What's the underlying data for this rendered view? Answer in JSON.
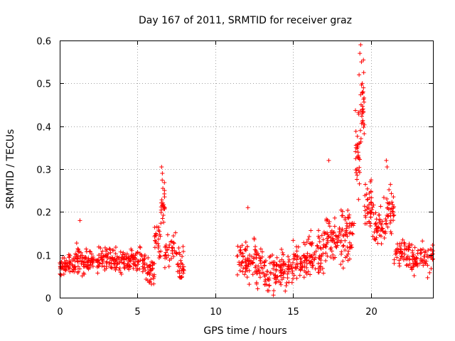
{
  "chart_data": {
    "type": "scatter",
    "title": "Day 167 of 2011, SRMTID for receiver graz",
    "xlabel": "GPS time / hours",
    "ylabel": "SRMTID / TECUs",
    "xlim": [
      0,
      24
    ],
    "ylim": [
      0,
      0.6
    ],
    "xticks": [
      0,
      5,
      10,
      15,
      20
    ],
    "xtick_labels": [
      "0",
      "5",
      "10",
      "15",
      "20"
    ],
    "yticks": [
      0,
      0.1,
      0.2,
      0.3,
      0.4,
      0.5,
      0.6
    ],
    "ytick_labels": [
      "0",
      "0.1",
      "0.2",
      "0.3",
      "0.4",
      "0.5",
      "0.6"
    ],
    "grid": true,
    "marker": "+",
    "color": "#ff0000",
    "series": [
      {
        "name": "SRMTID",
        "segments": [
          {
            "x_range": [
              0.0,
              1.0
            ],
            "center": 0.075,
            "spread": 0.035,
            "count": 60
          },
          {
            "x_range": [
              1.0,
              1.5
            ],
            "center": 0.09,
            "spread": 0.05,
            "count": 30
          },
          {
            "x_range": [
              1.5,
              2.5
            ],
            "center": 0.085,
            "spread": 0.04,
            "count": 55
          },
          {
            "x_range": [
              2.5,
              3.5
            ],
            "center": 0.095,
            "spread": 0.045,
            "count": 55
          },
          {
            "x_range": [
              3.5,
              4.5
            ],
            "center": 0.085,
            "spread": 0.04,
            "count": 55
          },
          {
            "x_range": [
              4.5,
              5.5
            ],
            "center": 0.09,
            "spread": 0.04,
            "count": 55
          },
          {
            "x_range": [
              5.5,
              6.1
            ],
            "center": 0.06,
            "spread": 0.045,
            "count": 35
          },
          {
            "x_range": [
              6.1,
              6.5
            ],
            "center": 0.13,
            "spread": 0.06,
            "count": 25
          },
          {
            "x_range": [
              6.5,
              6.75
            ],
            "center": 0.22,
            "spread": 0.07,
            "count": 25
          },
          {
            "x_range": [
              6.75,
              7.5
            ],
            "center": 0.11,
            "spread": 0.06,
            "count": 35
          },
          {
            "x_range": [
              7.5,
              8.0
            ],
            "center": 0.09,
            "spread": 0.07,
            "count": 30
          },
          {
            "x_range": [
              11.4,
              12.0
            ],
            "center": 0.09,
            "spread": 0.06,
            "count": 35
          },
          {
            "x_range": [
              12.0,
              13.0
            ],
            "center": 0.08,
            "spread": 0.07,
            "count": 60
          },
          {
            "x_range": [
              13.0,
              14.0
            ],
            "center": 0.06,
            "spread": 0.06,
            "count": 60
          },
          {
            "x_range": [
              14.0,
              15.0
            ],
            "center": 0.07,
            "spread": 0.06,
            "count": 60
          },
          {
            "x_range": [
              15.0,
              16.0
            ],
            "center": 0.085,
            "spread": 0.06,
            "count": 60
          },
          {
            "x_range": [
              16.0,
              17.0
            ],
            "center": 0.1,
            "spread": 0.07,
            "count": 60
          },
          {
            "x_range": [
              17.0,
              18.0
            ],
            "center": 0.14,
            "spread": 0.09,
            "count": 60
          },
          {
            "x_range": [
              18.0,
              19.0
            ],
            "center": 0.15,
            "spread": 0.09,
            "count": 60
          },
          {
            "x_range": [
              19.0,
              19.3
            ],
            "center": 0.35,
            "spread": 0.15,
            "count": 30
          },
          {
            "x_range": [
              19.3,
              19.6
            ],
            "center": 0.45,
            "spread": 0.13,
            "count": 30
          },
          {
            "x_range": [
              19.6,
              20.1
            ],
            "center": 0.22,
            "spread": 0.1,
            "count": 40
          },
          {
            "x_range": [
              20.1,
              21.0
            ],
            "center": 0.17,
            "spread": 0.07,
            "count": 50
          },
          {
            "x_range": [
              21.0,
              21.5
            ],
            "center": 0.2,
            "spread": 0.09,
            "count": 35
          },
          {
            "x_range": [
              21.5,
              22.5
            ],
            "center": 0.1,
            "spread": 0.05,
            "count": 55
          },
          {
            "x_range": [
              22.5,
              24.0
            ],
            "center": 0.09,
            "spread": 0.05,
            "count": 70
          }
        ],
        "notable_points": [
          {
            "x": 6.55,
            "y": 0.305
          },
          {
            "x": 6.6,
            "y": 0.29
          },
          {
            "x": 17.3,
            "y": 0.32
          },
          {
            "x": 19.3,
            "y": 0.57
          },
          {
            "x": 19.35,
            "y": 0.59
          },
          {
            "x": 19.4,
            "y": 0.55
          },
          {
            "x": 19.45,
            "y": 0.5
          },
          {
            "x": 19.25,
            "y": 0.52
          },
          {
            "x": 21.0,
            "y": 0.32
          },
          {
            "x": 21.05,
            "y": 0.305
          },
          {
            "x": 1.3,
            "y": 0.18
          },
          {
            "x": 12.1,
            "y": 0.21
          }
        ]
      }
    ]
  }
}
